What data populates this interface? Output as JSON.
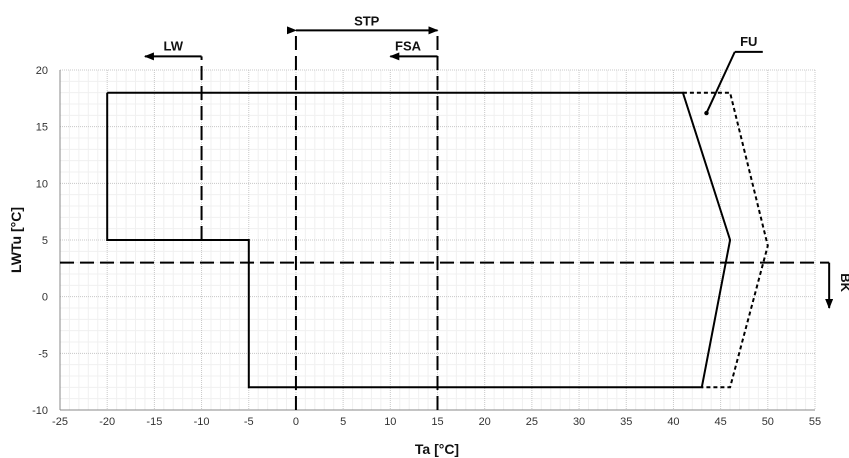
{
  "chart_data": {
    "type": "line",
    "xlabel": "Ta [°C]",
    "ylabel": "LWTu [°C]",
    "xlim": [
      -25,
      55
    ],
    "ylim": [
      -10,
      20
    ],
    "xticks": [
      -25,
      -20,
      -15,
      -10,
      -5,
      0,
      5,
      10,
      15,
      20,
      25,
      30,
      35,
      40,
      45,
      50,
      55
    ],
    "yticks": [
      -10,
      -5,
      0,
      5,
      10,
      15,
      20
    ],
    "x_tick_labels": [
      "-25",
      "-20",
      "-15",
      "-10",
      "-5",
      "0",
      "5",
      "10",
      "15",
      "20",
      "25",
      "30",
      "35",
      "40",
      "45",
      "50",
      "55"
    ],
    "y_tick_labels": [
      "-10",
      "-5",
      "0",
      "5",
      "10",
      "15",
      "20"
    ],
    "grid": true,
    "series": [
      {
        "style": "solid",
        "color": "#000000",
        "points": [
          [
            -20,
            18
          ],
          [
            41,
            18
          ],
          [
            46,
            5
          ],
          [
            43,
            -8
          ],
          [
            -5,
            -8
          ],
          [
            -5,
            5
          ],
          [
            -20,
            5
          ],
          [
            -20,
            18
          ]
        ]
      },
      {
        "style": "dotted",
        "color": "#000000",
        "points": [
          [
            41,
            18
          ],
          [
            46,
            18
          ],
          [
            50,
            4.5
          ],
          [
            46,
            -8
          ],
          [
            43,
            -8
          ]
        ]
      }
    ],
    "reference_lines": [
      {
        "orientation": "vertical",
        "x": -10,
        "y_range": [
          5,
          21.2
        ],
        "style": "dashed"
      },
      {
        "orientation": "vertical",
        "x": 0,
        "y_range": [
          -10,
          23.5
        ],
        "style": "dashed"
      },
      {
        "orientation": "vertical",
        "x": 15,
        "y_range": [
          -10,
          23.5
        ],
        "style": "dashed"
      },
      {
        "orientation": "horizontal",
        "y": 3,
        "x_range": [
          -25,
          56.5
        ],
        "style": "dashed"
      }
    ],
    "annotations": [
      {
        "label": "LW",
        "arrow_from": [
          -10,
          21.2
        ],
        "arrow_to": [
          -16,
          21.2
        ]
      },
      {
        "label": "STP",
        "arrow_from": [
          0,
          23.5
        ],
        "arrow_to": [
          15,
          23.5
        ],
        "double_headed": true
      },
      {
        "label": "FSA",
        "arrow_from": [
          15,
          21.2
        ],
        "arrow_to": [
          10,
          21.2
        ]
      },
      {
        "label": "FU",
        "leader_from": [
          43.5,
          16.2
        ],
        "leader_to": [
          46.5,
          21.6
        ]
      },
      {
        "label": "BK",
        "arrow_from": [
          56.5,
          3
        ],
        "arrow_to": [
          56.5,
          -1
        ]
      }
    ]
  }
}
